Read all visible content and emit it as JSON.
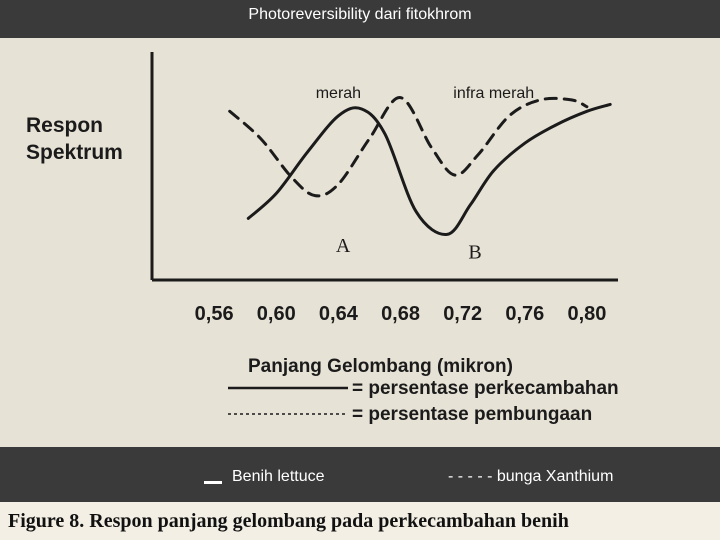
{
  "title": "Photoreversibility dari fitokhrom",
  "caption": "Figure 8.  Respon panjang gelombang  pada perkecambahan benih",
  "legend_bar": {
    "left": "Benih lettuce",
    "right": "- - - - - bunga Xanthium"
  },
  "colors": {
    "bar": "#3a3a3a",
    "paper": "#e7e2d6",
    "ink": "#1b1b1b",
    "bar_text": "#ffffff"
  },
  "chart_data": {
    "type": "line",
    "ylabel": "Respon Spektrum",
    "ylabel_lines": [
      "Respon",
      "Spektrum"
    ],
    "xlabel": "Panjang Gelombang (mikron)",
    "x_ticks": [
      "0,56",
      "0,60",
      "0,64",
      "0,68",
      "0,72",
      "0,76",
      "0,80"
    ],
    "x_tick_values": [
      0.56,
      0.6,
      0.64,
      0.68,
      0.72,
      0.76,
      0.8
    ],
    "xlim": [
      0.52,
      0.82
    ],
    "ylim": [
      0,
      1
    ],
    "region_labels": [
      {
        "text": "merah",
        "x": 0.64
      },
      {
        "text": "infra merah",
        "x": 0.74
      }
    ],
    "point_labels": [
      {
        "text": "A",
        "x": 0.643,
        "y": 0.22
      },
      {
        "text": "B",
        "x": 0.728,
        "y": 0.19
      }
    ],
    "series": [
      {
        "name": "persentase perkecambahan",
        "style": "solid",
        "x": [
          0.582,
          0.6,
          0.62,
          0.64,
          0.655,
          0.67,
          0.69,
          0.71,
          0.725,
          0.74,
          0.76,
          0.78,
          0.8,
          0.815
        ],
        "y": [
          0.27,
          0.38,
          0.56,
          0.72,
          0.75,
          0.64,
          0.3,
          0.2,
          0.33,
          0.48,
          0.6,
          0.68,
          0.74,
          0.77
        ]
      },
      {
        "name": "persentase pembungaan",
        "style": "dashed",
        "x": [
          0.57,
          0.59,
          0.61,
          0.625,
          0.64,
          0.66,
          0.68,
          0.7,
          0.715,
          0.73,
          0.75,
          0.77,
          0.79,
          0.8
        ],
        "y": [
          0.74,
          0.62,
          0.45,
          0.37,
          0.42,
          0.62,
          0.8,
          0.58,
          0.46,
          0.55,
          0.72,
          0.79,
          0.79,
          0.76
        ]
      }
    ],
    "legend": [
      {
        "text": "= persentase perkecambahan",
        "style": "solid"
      },
      {
        "text": "= persentase pembungaan",
        "style": "dashed"
      }
    ]
  }
}
